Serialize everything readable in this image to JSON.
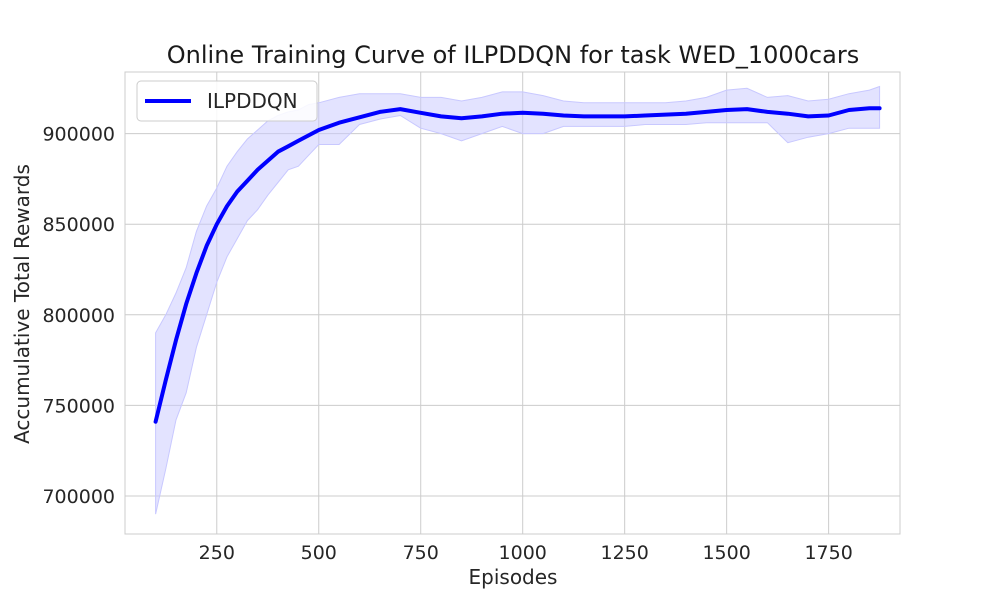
{
  "chart_data": {
    "type": "line",
    "title": "Online Training Curve of ILPDDQN for task WED_1000cars",
    "xlabel": "Episodes",
    "ylabel": "Accumulative Total Rewards",
    "xlim": [
      25,
      1925
    ],
    "ylim": [
      679000,
      934000
    ],
    "xticks": [
      250,
      500,
      750,
      1000,
      1250,
      1500,
      1750
    ],
    "yticks": [
      700000,
      750000,
      800000,
      850000,
      900000
    ],
    "xtick_labels": [
      "250",
      "500",
      "750",
      "1000",
      "1250",
      "1500",
      "1750"
    ],
    "ytick_labels": [
      "700000",
      "750000",
      "800000",
      "850000",
      "900000"
    ],
    "grid": true,
    "legend": {
      "position": "top-left",
      "entries": [
        "ILPDDQN"
      ]
    },
    "series": [
      {
        "name": "ILPDDQN",
        "color": "#0000ff",
        "band_color": "#c8c8ff",
        "x": [
          100,
          125,
          150,
          175,
          200,
          225,
          250,
          275,
          300,
          325,
          350,
          375,
          400,
          425,
          450,
          475,
          500,
          550,
          600,
          650,
          700,
          750,
          800,
          850,
          900,
          950,
          1000,
          1050,
          1100,
          1150,
          1200,
          1250,
          1300,
          1350,
          1400,
          1450,
          1500,
          1550,
          1600,
          1650,
          1700,
          1750,
          1800,
          1850,
          1875
        ],
        "y": [
          741000,
          764000,
          786000,
          806000,
          823000,
          838000,
          850000,
          860000,
          868000,
          874000,
          880000,
          885000,
          890000,
          893000,
          896000,
          899000,
          902000,
          906000,
          909000,
          912000,
          913500,
          911500,
          909500,
          908500,
          909500,
          911000,
          911500,
          911000,
          910000,
          909500,
          909500,
          909500,
          910000,
          910500,
          911000,
          912000,
          913000,
          913500,
          912000,
          911000,
          909500,
          910000,
          913000,
          914000,
          914000
        ],
        "lower": [
          690000,
          715000,
          742000,
          757000,
          782000,
          800000,
          818000,
          832000,
          842000,
          852000,
          858000,
          866000,
          873000,
          880000,
          882000,
          888000,
          894000,
          894000,
          905000,
          908000,
          910000,
          903000,
          900000,
          896000,
          900000,
          904000,
          900000,
          900000,
          904000,
          904000,
          904000,
          904000,
          905000,
          905000,
          905000,
          906000,
          906000,
          906000,
          906000,
          895000,
          898000,
          900000,
          903000,
          903000,
          903000
        ],
        "upper": [
          790000,
          800000,
          812000,
          826000,
          846000,
          860000,
          870000,
          882000,
          890000,
          897000,
          902000,
          907000,
          910000,
          912000,
          913000,
          916000,
          917000,
          920000,
          922000,
          922000,
          922000,
          920000,
          920000,
          918000,
          920000,
          923000,
          923000,
          921000,
          918000,
          917000,
          917000,
          917000,
          917000,
          917000,
          918000,
          920000,
          924000,
          925000,
          920000,
          921000,
          918000,
          919000,
          922000,
          924000,
          926000
        ]
      }
    ]
  }
}
